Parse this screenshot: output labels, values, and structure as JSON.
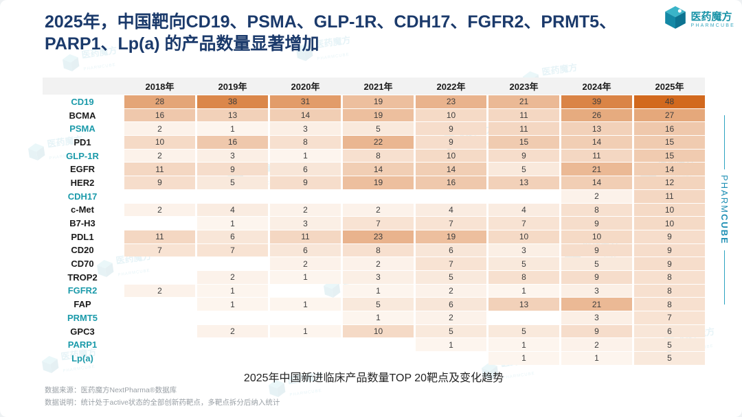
{
  "slide": {
    "title_line1": "2025年，中国靶向CD19、PSMA、GLP-1R、CDH17、FGFR2、PRMT5、",
    "title_line2": "PARP1、Lp(a) 的产品数量显著增加",
    "caption": "2025年中国新进临床产品数量TOP 20靶点及变化趋势",
    "source_line": "数据来源：医药魔方NextPharma®数据库",
    "note_line": "数据说明：统计处于active状态的全部创新药靶点，多靶点拆分后纳入统计"
  },
  "logo": {
    "name": "医药魔方",
    "subname": "PHARMCUBE"
  },
  "side_brand": {
    "pharm": "PHARM",
    "cube": "CUBE"
  },
  "watermark": {
    "text": "医药魔方",
    "subtext": "PHARMCUBE"
  },
  "colors": {
    "title_navy": "#1b3a6b",
    "accent_teal": "#1b9aaa",
    "heat_low": "#fdf5ee",
    "heat_high": "#d2691e",
    "header_bg": "#f2f2f2"
  },
  "chart_data": {
    "type": "heatmap",
    "title": "2025年中国新进临床产品数量TOP 20靶点及变化趋势",
    "columns": [
      "2018年",
      "2019年",
      "2020年",
      "2021年",
      "2022年",
      "2023年",
      "2024年",
      "2025年"
    ],
    "highlight_targets": [
      "CD19",
      "PSMA",
      "GLP-1R",
      "CDH17",
      "FGFR2",
      "PRMT5",
      "PARP1",
      "Lp(a)"
    ],
    "value_range": [
      1,
      48
    ],
    "rows": [
      {
        "target": "CD19",
        "values": [
          28,
          38,
          31,
          19,
          23,
          21,
          39,
          48
        ]
      },
      {
        "target": "BCMA",
        "values": [
          16,
          13,
          14,
          19,
          10,
          11,
          26,
          27
        ]
      },
      {
        "target": "PSMA",
        "values": [
          2,
          1,
          3,
          5,
          9,
          11,
          13,
          16
        ]
      },
      {
        "target": "PD1",
        "values": [
          10,
          16,
          8,
          22,
          9,
          15,
          14,
          15
        ]
      },
      {
        "target": "GLP-1R",
        "values": [
          2,
          3,
          1,
          8,
          10,
          9,
          11,
          15
        ]
      },
      {
        "target": "EGFR",
        "values": [
          11,
          9,
          6,
          14,
          14,
          5,
          21,
          14
        ]
      },
      {
        "target": "HER2",
        "values": [
          9,
          5,
          9,
          19,
          16,
          13,
          14,
          12
        ]
      },
      {
        "target": "CDH17",
        "values": [
          null,
          null,
          null,
          null,
          null,
          null,
          2,
          11
        ]
      },
      {
        "target": "c-Met",
        "values": [
          2,
          4,
          2,
          2,
          4,
          4,
          8,
          10
        ]
      },
      {
        "target": "B7-H3",
        "values": [
          null,
          1,
          3,
          7,
          7,
          7,
          9,
          10
        ]
      },
      {
        "target": "PDL1",
        "values": [
          11,
          6,
          11,
          23,
          19,
          10,
          10,
          9
        ]
      },
      {
        "target": "CD20",
        "values": [
          7,
          7,
          6,
          8,
          6,
          3,
          9,
          9
        ]
      },
      {
        "target": "CD70",
        "values": [
          null,
          null,
          2,
          2,
          7,
          5,
          5,
          9
        ]
      },
      {
        "target": "TROP2",
        "values": [
          null,
          2,
          1,
          3,
          5,
          8,
          9,
          8
        ]
      },
      {
        "target": "FGFR2",
        "values": [
          2,
          1,
          null,
          1,
          2,
          1,
          3,
          8
        ]
      },
      {
        "target": "FAP",
        "values": [
          null,
          1,
          1,
          5,
          6,
          13,
          21,
          8
        ]
      },
      {
        "target": "PRMT5",
        "values": [
          null,
          null,
          null,
          1,
          2,
          null,
          3,
          7
        ]
      },
      {
        "target": "GPC3",
        "values": [
          null,
          2,
          1,
          10,
          5,
          5,
          9,
          6
        ]
      },
      {
        "target": "PARP1",
        "values": [
          null,
          null,
          null,
          null,
          1,
          1,
          2,
          5
        ]
      },
      {
        "target": "Lp(a)",
        "values": [
          null,
          null,
          null,
          null,
          null,
          1,
          1,
          5
        ]
      }
    ]
  }
}
